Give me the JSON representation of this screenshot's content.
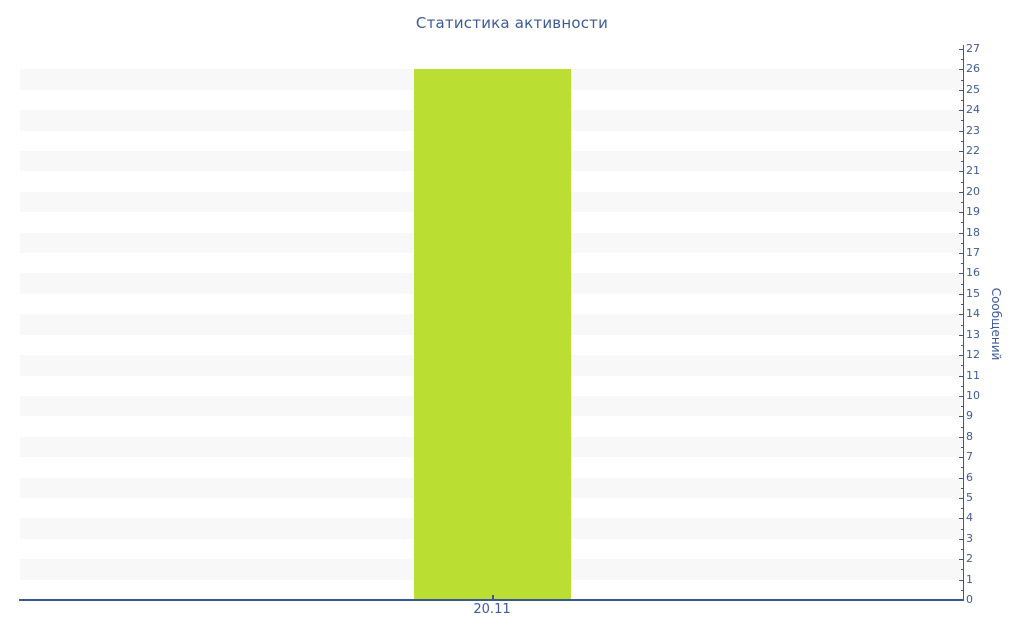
{
  "chart_data": {
    "type": "bar",
    "title": "Статистика активности",
    "categories": [
      "20.11"
    ],
    "values": [
      26
    ],
    "xlabel": "",
    "ylabel": "Сообщений",
    "ylim": [
      0,
      27
    ],
    "y_tick_step": 1,
    "y_minor_tick_step": 0.5,
    "y_axis_position": "right",
    "y_tick_labels": [
      "0",
      "1",
      "2",
      "3",
      "4",
      "5",
      "6",
      "7",
      "8",
      "9",
      "10",
      "11",
      "12",
      "13",
      "14",
      "15",
      "16",
      "17",
      "18",
      "19",
      "20",
      "21",
      "22",
      "23",
      "24",
      "25",
      "26",
      "27"
    ],
    "grid": "alternating-horizontal-bands",
    "legend_position": "none",
    "colors": {
      "bar": "#bade31",
      "axis": "#3a5795",
      "text": "#3d5b99",
      "band": "#f8f8f8",
      "background": "#ffffff"
    }
  }
}
